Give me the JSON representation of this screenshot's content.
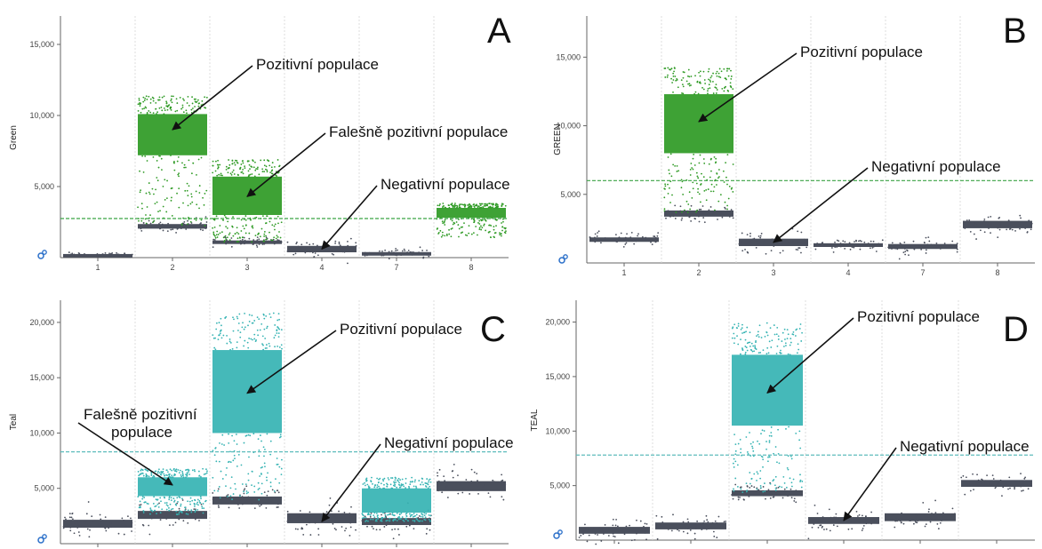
{
  "colors": {
    "negative": "#4a4f5c",
    "green": "#2e9a24",
    "teal": "#35b3b3",
    "threshold_green": "#3aa344",
    "threshold_teal": "#5fbcbc",
    "icon": "#2a6fc9"
  },
  "chart_data": [
    {
      "type": "scatter",
      "panel": "A",
      "ylabel": "Green",
      "ylim": [
        0,
        17000
      ],
      "yticks": [
        5000,
        10000,
        15000
      ],
      "ytick_labels": [
        "5,000",
        "10,000",
        "15,000"
      ],
      "categories": [
        "1",
        "2",
        "3",
        "4",
        "7",
        "8"
      ],
      "threshold": 2750,
      "positive_color": "green",
      "wells": [
        {
          "neg": [
            200,
            60
          ],
          "pos": null
        },
        {
          "neg": [
            2200,
            180
          ],
          "pos": [
            7200,
            10100
          ]
        },
        {
          "neg": [
            1100,
            120
          ],
          "pos": [
            3000,
            5700
          ]
        },
        {
          "neg": [
            600,
            250
          ],
          "pos": null
        },
        {
          "neg": [
            300,
            100
          ],
          "pos": null
        },
        {
          "neg": null,
          "pos": [
            2800,
            3500
          ]
        }
      ],
      "annotations": [
        {
          "text": "Pozitivní populace",
          "well": 1,
          "value": 9000
        },
        {
          "text": "Falešně pozitivní populace",
          "well": 2,
          "value": 4300
        },
        {
          "text": "Negativní populace",
          "well": 3,
          "value": 600
        }
      ]
    },
    {
      "type": "scatter",
      "panel": "B",
      "ylabel": "GREEN",
      "ylim": [
        0,
        18000
      ],
      "yticks": [
        5000,
        10000,
        15000
      ],
      "ytick_labels": [
        "5,000",
        "10,000",
        "15,000"
      ],
      "categories": [
        "1",
        "2",
        "3",
        "4",
        "7",
        "8"
      ],
      "threshold": 6000,
      "positive_color": "green",
      "wells": [
        {
          "neg": [
            1700,
            180
          ],
          "pos": null
        },
        {
          "neg": [
            3600,
            250
          ],
          "pos": [
            8000,
            12300
          ]
        },
        {
          "neg": [
            1500,
            300
          ],
          "pos": null
        },
        {
          "neg": [
            1300,
            150
          ],
          "pos": null
        },
        {
          "neg": [
            1200,
            200
          ],
          "pos": null
        },
        {
          "neg": [
            2800,
            300
          ],
          "pos": null
        }
      ],
      "annotations": [
        {
          "text": "Pozitivní populace",
          "well": 1,
          "value": 10300
        },
        {
          "text": "Negativní populace",
          "well": 2,
          "value": 1500
        }
      ]
    },
    {
      "type": "scatter",
      "panel": "C",
      "ylabel": "Teal",
      "ylim": [
        0,
        22000
      ],
      "yticks": [
        5000,
        10000,
        15000,
        20000
      ],
      "ytick_labels": [
        "5,000",
        "10,000",
        "15,000",
        "20,000"
      ],
      "categories": [
        "",
        "",
        "",
        "",
        "",
        ""
      ],
      "threshold": 8300,
      "positive_color": "teal",
      "wells": [
        {
          "neg": [
            1800,
            400
          ],
          "pos": null
        },
        {
          "neg": [
            2600,
            400
          ],
          "pos": [
            4300,
            6000
          ]
        },
        {
          "neg": [
            3900,
            400
          ],
          "pos": [
            10000,
            17500
          ]
        },
        {
          "neg": [
            2300,
            500
          ],
          "pos": null
        },
        {
          "neg": [
            2000,
            350
          ],
          "pos": [
            2800,
            5000
          ]
        },
        {
          "neg": [
            5200,
            500
          ],
          "pos": null
        }
      ],
      "annotations": [
        {
          "text": "Pozitivní populace",
          "well": 2,
          "value": 13600
        },
        {
          "text": "Falešně pozitivní",
          "text2": "populace",
          "well": 1,
          "value": 5300
        },
        {
          "text": "Negativní populace",
          "well": 3,
          "value": 2000
        }
      ]
    },
    {
      "type": "scatter",
      "panel": "D",
      "ylabel": "TEAL",
      "ylim": [
        0,
        22000
      ],
      "yticks": [
        5000,
        10000,
        15000,
        20000
      ],
      "ytick_labels": [
        "5,000",
        "10,000",
        "15,000",
        "20,000"
      ],
      "categories": [
        "",
        "",
        "",
        "",
        "",
        ""
      ],
      "threshold": 7800,
      "positive_color": "teal",
      "wells": [
        {
          "neg": [
            900,
            350
          ],
          "pos": null
        },
        {
          "neg": [
            1300,
            350
          ],
          "pos": null
        },
        {
          "neg": [
            4300,
            300
          ],
          "pos": [
            10500,
            17000
          ]
        },
        {
          "neg": [
            1800,
            350
          ],
          "pos": null
        },
        {
          "neg": [
            2100,
            400
          ],
          "pos": null
        },
        {
          "neg": [
            5200,
            350
          ],
          "pos": null
        }
      ],
      "annotations": [
        {
          "text": "Pozitivní populace",
          "well": 2,
          "value": 13500
        },
        {
          "text": "Negativní populace",
          "well": 3,
          "value": 1800
        }
      ]
    }
  ]
}
